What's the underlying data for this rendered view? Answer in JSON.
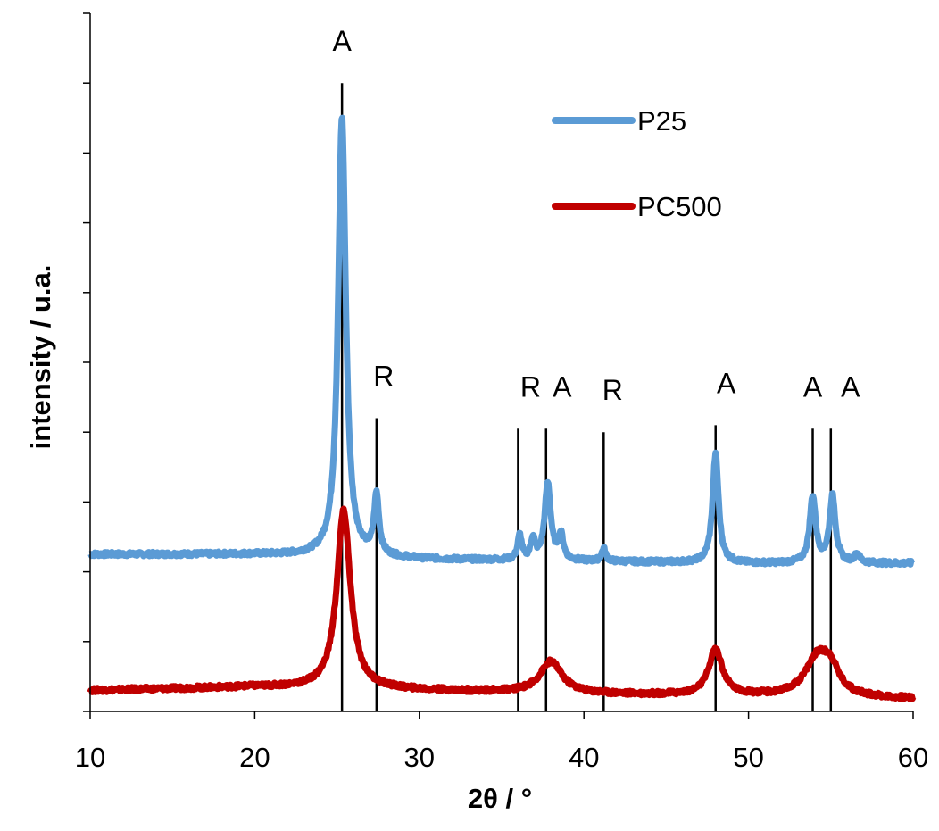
{
  "chart_data": {
    "type": "line",
    "title": "",
    "xlabel": "2θ / °",
    "ylabel": "intensity / u.a.",
    "xlim": [
      10,
      60
    ],
    "ylim": [
      0,
      10
    ],
    "x_ticks": [
      "10",
      "20",
      "30",
      "40",
      "50",
      "60"
    ],
    "y_minor_ticks": 10,
    "grid": false,
    "legend_position": "top-right",
    "series": [
      {
        "name": "P25",
        "color": "#5b9bd5",
        "baseline": [
          [
            10,
            2.25
          ],
          [
            20,
            2.25
          ],
          [
            30,
            2.18
          ],
          [
            40,
            2.15
          ],
          [
            50,
            2.12
          ],
          [
            60,
            2.12
          ]
        ],
        "peaks": [
          {
            "x": 25.3,
            "h": 6.3,
            "w": 0.28
          },
          {
            "x": 27.4,
            "h": 0.85,
            "w": 0.18
          },
          {
            "x": 36.1,
            "h": 0.35,
            "w": 0.15
          },
          {
            "x": 36.9,
            "h": 0.3,
            "w": 0.15
          },
          {
            "x": 37.8,
            "h": 1.1,
            "w": 0.22
          },
          {
            "x": 38.6,
            "h": 0.35,
            "w": 0.18
          },
          {
            "x": 41.2,
            "h": 0.18,
            "w": 0.15
          },
          {
            "x": 48.0,
            "h": 1.55,
            "w": 0.22
          },
          {
            "x": 53.9,
            "h": 0.95,
            "w": 0.22
          },
          {
            "x": 55.1,
            "h": 0.95,
            "w": 0.22
          },
          {
            "x": 56.6,
            "h": 0.12,
            "w": 0.2
          }
        ]
      },
      {
        "name": "PC500",
        "color": "#c00000",
        "baseline": [
          [
            10,
            0.3
          ],
          [
            20,
            0.35
          ],
          [
            30,
            0.3
          ],
          [
            40,
            0.25
          ],
          [
            50,
            0.22
          ],
          [
            60,
            0.18
          ]
        ],
        "peaks": [
          {
            "x": 25.4,
            "h": 2.55,
            "w": 0.5
          },
          {
            "x": 38.0,
            "h": 0.45,
            "w": 0.8
          },
          {
            "x": 48.0,
            "h": 0.65,
            "w": 0.5
          },
          {
            "x": 54.2,
            "h": 0.55,
            "w": 0.9
          },
          {
            "x": 55.0,
            "h": 0.3,
            "w": 0.6
          }
        ]
      }
    ],
    "reference_lines": [
      {
        "x": 25.3,
        "label": "A",
        "y_top": 9.0
      },
      {
        "x": 27.4,
        "label": "R",
        "y_top": 4.2
      },
      {
        "x": 36.0,
        "label": "R",
        "y_top": 4.05
      },
      {
        "x": 37.7,
        "label": "A",
        "y_top": 4.05
      },
      {
        "x": 41.2,
        "label": "R",
        "y_top": 4.0
      },
      {
        "x": 48.0,
        "label": "A",
        "y_top": 4.1
      },
      {
        "x": 53.9,
        "label": "A",
        "y_top": 4.05
      },
      {
        "x": 55.0,
        "label": "A",
        "y_top": 4.05
      }
    ]
  }
}
